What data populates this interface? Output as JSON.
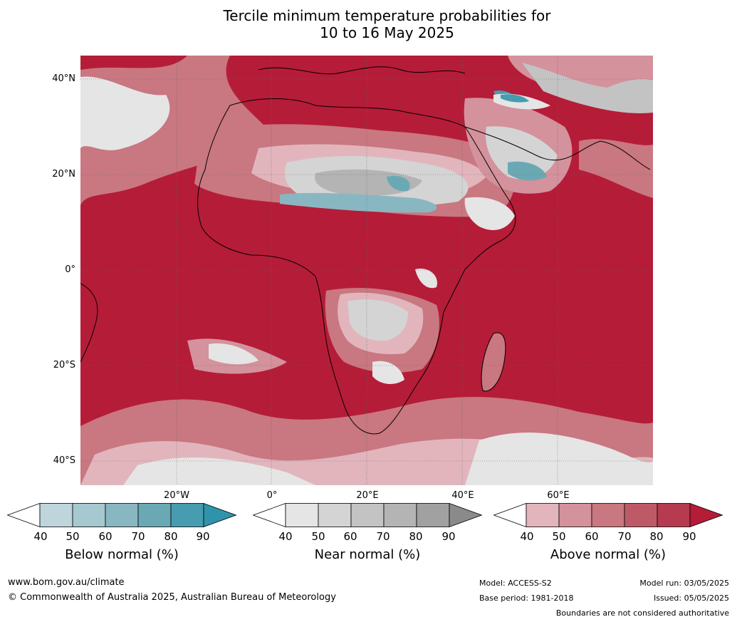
{
  "title": {
    "line1": "Tercile minimum temperature probabilities for",
    "line2": "10 to 16 May 2025"
  },
  "map": {
    "lat_labels": [
      "40°N",
      "20°N",
      "0°",
      "20°S",
      "40°S"
    ],
    "lon_labels": [
      "20°W",
      "0°",
      "20°E",
      "40°E",
      "60°E"
    ]
  },
  "colorbars": [
    {
      "label": "Below normal (%)",
      "ticks": [
        "40",
        "50",
        "60",
        "70",
        "80",
        "90"
      ],
      "colors": [
        "#bed5dc",
        "#a6c8cf",
        "#89b7c1",
        "#6aa9b4",
        "#479caf"
      ],
      "under_color": "#ffffff",
      "over_color": "#2f93ab"
    },
    {
      "label": "Near normal (%)",
      "ticks": [
        "40",
        "50",
        "60",
        "70",
        "80",
        "90"
      ],
      "colors": [
        "#e5e5e5",
        "#d4d4d4",
        "#c3c3c3",
        "#b4b4b4",
        "#a1a1a1"
      ],
      "under_color": "#ffffff",
      "over_color": "#8a8a8a"
    },
    {
      "label": "Above normal (%)",
      "ticks": [
        "40",
        "50",
        "60",
        "70",
        "80",
        "90"
      ],
      "colors": [
        "#e2b5bd",
        "#d3929c",
        "#c97780",
        "#be5a68",
        "#b73b50"
      ],
      "under_color": "#ffffff",
      "over_color": "#b51c38"
    }
  ],
  "footer": {
    "url": "www.bom.gov.au/climate",
    "copyright": "© Commonwealth of Australia 2025, Australian Bureau of Meteorology",
    "model": "Model: ACCESS-S2",
    "base_period": "Base period: 1981-2018",
    "model_run": "Model run: 03/05/2025",
    "issued": "Issued: 05/05/2025",
    "disclaimer": "Boundaries are not considered authoritative"
  }
}
